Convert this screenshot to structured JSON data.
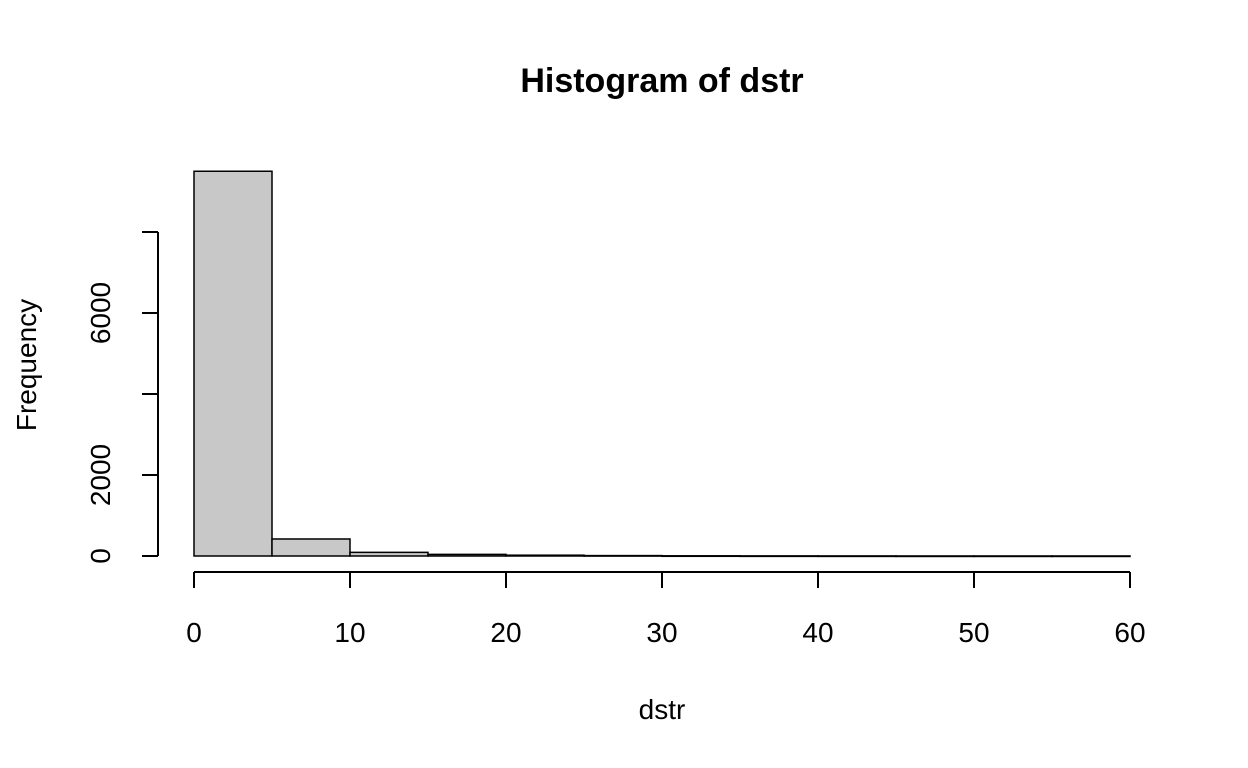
{
  "chart_data": {
    "type": "bar",
    "title": "Histogram of dstr",
    "xlabel": "dstr",
    "ylabel": "Frequency",
    "bin_edges": [
      0,
      5,
      10,
      15,
      20,
      25,
      30,
      35,
      40,
      45,
      50,
      55,
      60
    ],
    "values": [
      9500,
      420,
      90,
      40,
      20,
      10,
      5,
      3,
      2,
      1,
      1,
      1
    ],
    "xlim": [
      0,
      60
    ],
    "ylim": [
      0,
      8000
    ],
    "x_ticks": [
      0,
      10,
      20,
      30,
      40,
      50,
      60
    ],
    "y_ticks": [
      0,
      2000,
      4000,
      6000,
      8000
    ],
    "x_tick_labels": [
      "0",
      "10",
      "20",
      "30",
      "40",
      "50",
      "60"
    ],
    "y_tick_labels": [
      "0",
      "2000",
      "",
      "6000",
      ""
    ],
    "bar_fill": "#c8c8c8",
    "bar_stroke": "#000000",
    "grid": false,
    "legend": "none"
  }
}
